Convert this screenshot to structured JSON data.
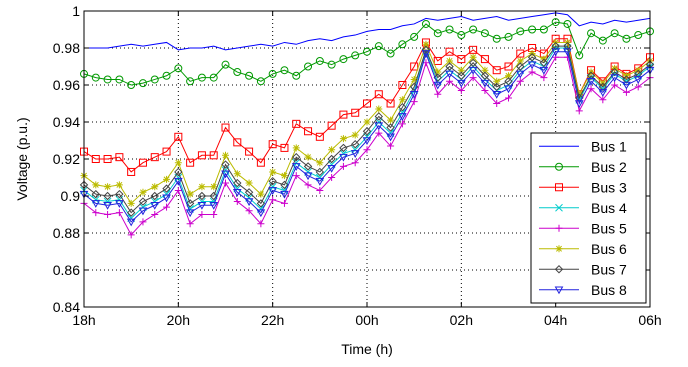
{
  "chart_data": {
    "type": "line",
    "xlabel": "Time (h)",
    "ylabel": "Voltage (p.u.)",
    "ylim": [
      0.84,
      1.0
    ],
    "xlim": [
      0,
      48
    ],
    "grid": true,
    "legend_position": "bottom-right",
    "x_ticks": [
      {
        "value": 0,
        "label": "18h"
      },
      {
        "value": 8,
        "label": "20h"
      },
      {
        "value": 16,
        "label": "22h"
      },
      {
        "value": 24,
        "label": "00h"
      },
      {
        "value": 32,
        "label": "02h"
      },
      {
        "value": 40,
        "label": "04h"
      },
      {
        "value": 48,
        "label": "06h"
      }
    ],
    "y_ticks": [
      0.84,
      0.86,
      0.88,
      0.9,
      0.92,
      0.94,
      0.96,
      0.98,
      1
    ],
    "y_tick_labels": [
      "0.84",
      "0.86",
      "0.88",
      "0.9",
      "0.92",
      "0.94",
      "0.96",
      "0.98",
      "1"
    ],
    "series": [
      {
        "name": "Bus 1",
        "color": "#0000ff",
        "marker": "none",
        "values": [
          0.98,
          0.98,
          0.98,
          0.981,
          0.982,
          0.981,
          0.982,
          0.983,
          0.979,
          0.98,
          0.98,
          0.981,
          0.979,
          0.98,
          0.981,
          0.982,
          0.981,
          0.983,
          0.982,
          0.984,
          0.985,
          0.984,
          0.986,
          0.987,
          0.989,
          0.99,
          0.99,
          0.992,
          0.993,
          0.996,
          0.995,
          0.996,
          0.997,
          0.995,
          0.996,
          0.997,
          0.995,
          0.996,
          0.997,
          0.998,
          0.999,
          0.998,
          0.992,
          0.994,
          0.993,
          0.995,
          0.994,
          0.995,
          0.996
        ]
      },
      {
        "name": "Bus 2",
        "color": "#009900",
        "marker": "circle",
        "values": [
          0.966,
          0.964,
          0.963,
          0.963,
          0.96,
          0.961,
          0.963,
          0.965,
          0.969,
          0.962,
          0.964,
          0.964,
          0.971,
          0.967,
          0.965,
          0.962,
          0.966,
          0.968,
          0.965,
          0.97,
          0.973,
          0.971,
          0.974,
          0.976,
          0.978,
          0.981,
          0.977,
          0.982,
          0.986,
          0.993,
          0.988,
          0.99,
          0.987,
          0.99,
          0.988,
          0.985,
          0.986,
          0.989,
          0.99,
          0.99,
          0.994,
          0.993,
          0.976,
          0.988,
          0.984,
          0.988,
          0.985,
          0.987,
          0.989
        ]
      },
      {
        "name": "Bus 3",
        "color": "#ff0000",
        "marker": "square",
        "values": [
          0.924,
          0.92,
          0.92,
          0.921,
          0.913,
          0.918,
          0.921,
          0.924,
          0.932,
          0.918,
          0.922,
          0.922,
          0.937,
          0.929,
          0.924,
          0.918,
          0.928,
          0.926,
          0.939,
          0.935,
          0.932,
          0.938,
          0.944,
          0.945,
          0.95,
          0.955,
          0.95,
          0.96,
          0.97,
          0.983,
          0.973,
          0.978,
          0.974,
          0.979,
          0.974,
          0.968,
          0.97,
          0.977,
          0.98,
          0.977,
          0.985,
          0.985,
          0.955,
          0.968,
          0.962,
          0.97,
          0.966,
          0.969,
          0.975
        ]
      },
      {
        "name": "Bus 4",
        "color": "#00cccc",
        "marker": "x",
        "values": [
          0.903,
          0.898,
          0.897,
          0.898,
          0.888,
          0.894,
          0.897,
          0.901,
          0.91,
          0.893,
          0.897,
          0.897,
          0.914,
          0.904,
          0.899,
          0.893,
          0.905,
          0.903,
          0.918,
          0.913,
          0.91,
          0.917,
          0.923,
          0.925,
          0.932,
          0.94,
          0.934,
          0.945,
          0.957,
          0.978,
          0.962,
          0.968,
          0.963,
          0.97,
          0.963,
          0.957,
          0.96,
          0.968,
          0.973,
          0.97,
          0.98,
          0.98,
          0.952,
          0.964,
          0.958,
          0.966,
          0.962,
          0.965,
          0.97
        ]
      },
      {
        "name": "Bus 5",
        "color": "#cc00cc",
        "marker": "plus",
        "values": [
          0.896,
          0.891,
          0.89,
          0.891,
          0.879,
          0.886,
          0.89,
          0.894,
          0.903,
          0.885,
          0.89,
          0.89,
          0.907,
          0.897,
          0.892,
          0.885,
          0.898,
          0.896,
          0.911,
          0.906,
          0.903,
          0.91,
          0.916,
          0.918,
          0.925,
          0.934,
          0.927,
          0.939,
          0.951,
          0.972,
          0.955,
          0.962,
          0.957,
          0.964,
          0.957,
          0.95,
          0.953,
          0.962,
          0.967,
          0.964,
          0.975,
          0.975,
          0.946,
          0.958,
          0.952,
          0.96,
          0.956,
          0.959,
          0.964
        ]
      },
      {
        "name": "Bus 6",
        "color": "#bbbb00",
        "marker": "star",
        "values": [
          0.911,
          0.906,
          0.905,
          0.906,
          0.896,
          0.902,
          0.905,
          0.909,
          0.918,
          0.901,
          0.905,
          0.905,
          0.922,
          0.912,
          0.907,
          0.901,
          0.913,
          0.911,
          0.926,
          0.921,
          0.918,
          0.925,
          0.931,
          0.933,
          0.94,
          0.947,
          0.941,
          0.952,
          0.963,
          0.982,
          0.967,
          0.973,
          0.968,
          0.975,
          0.968,
          0.962,
          0.965,
          0.973,
          0.977,
          0.974,
          0.983,
          0.983,
          0.955,
          0.967,
          0.961,
          0.969,
          0.965,
          0.968,
          0.973
        ]
      },
      {
        "name": "Bus 7",
        "color": "#444444",
        "marker": "diamond",
        "values": [
          0.906,
          0.901,
          0.9,
          0.901,
          0.891,
          0.897,
          0.9,
          0.904,
          0.913,
          0.896,
          0.9,
          0.9,
          0.917,
          0.907,
          0.902,
          0.896,
          0.908,
          0.906,
          0.921,
          0.916,
          0.913,
          0.92,
          0.926,
          0.928,
          0.935,
          0.943,
          0.937,
          0.948,
          0.959,
          0.979,
          0.964,
          0.97,
          0.965,
          0.972,
          0.965,
          0.959,
          0.962,
          0.97,
          0.975,
          0.972,
          0.981,
          0.981,
          0.953,
          0.965,
          0.959,
          0.967,
          0.963,
          0.966,
          0.971
        ]
      },
      {
        "name": "Bus 8",
        "color": "#2222dd",
        "marker": "triangle-down",
        "values": [
          0.901,
          0.896,
          0.895,
          0.896,
          0.886,
          0.892,
          0.895,
          0.899,
          0.908,
          0.891,
          0.895,
          0.895,
          0.912,
          0.902,
          0.897,
          0.891,
          0.903,
          0.901,
          0.916,
          0.911,
          0.908,
          0.915,
          0.921,
          0.923,
          0.93,
          0.938,
          0.932,
          0.943,
          0.955,
          0.977,
          0.96,
          0.966,
          0.961,
          0.968,
          0.961,
          0.955,
          0.958,
          0.966,
          0.971,
          0.968,
          0.978,
          0.978,
          0.95,
          0.962,
          0.956,
          0.964,
          0.96,
          0.963,
          0.968
        ]
      }
    ]
  }
}
